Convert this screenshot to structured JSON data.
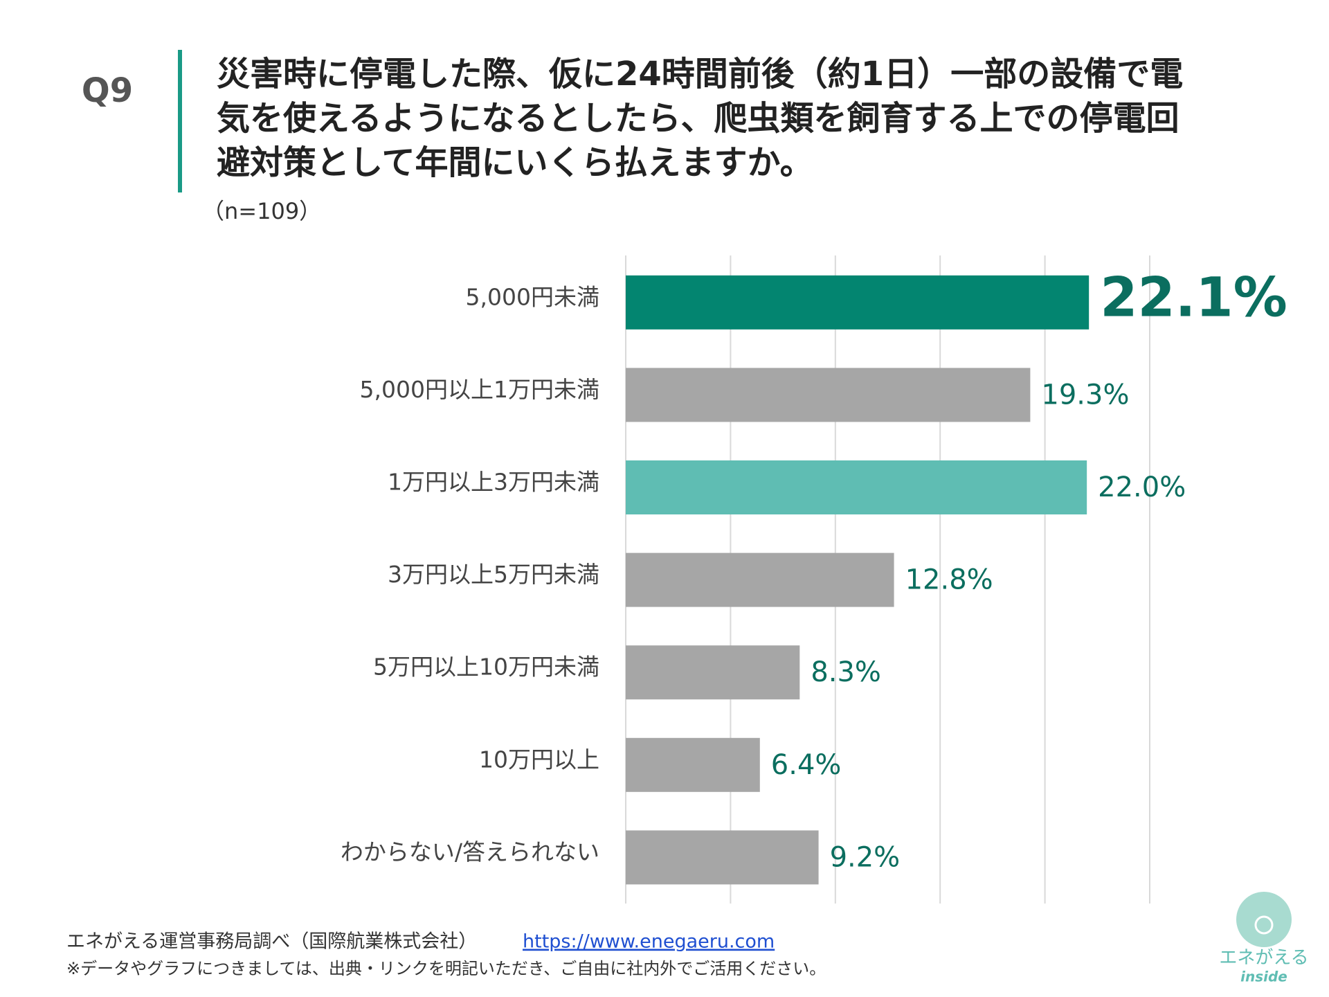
{
  "header": {
    "question": "Q9"
  },
  "chart_data": {
    "type": "bar",
    "orientation": "horizontal",
    "title": [
      "災害時に停電した際、仮に24時間前後（約1日）一部の設備で電",
      "気を使えるようになるとしたら、爬虫類を飼育する上での停電回",
      "避対策として年間にいくら払えますか。"
    ],
    "subtitle": "（n=109）",
    "categories": [
      "5,000円未満",
      "5,000円以上1万円未満",
      "1万円以上3万円未満",
      "3万円以上5万円未満",
      "5万円以上10万円未満",
      "10万円以上",
      "わからない/答えられない"
    ],
    "values": [
      22.1,
      19.3,
      22.0,
      12.8,
      8.3,
      6.4,
      9.2
    ],
    "value_labels": [
      "22.1%",
      "19.3%",
      "22.0%",
      "12.8%",
      "8.3%",
      "6.4%",
      "9.2%"
    ],
    "colors": [
      "#038570",
      "#a6a6a6",
      "#5fbdb3",
      "#a6a6a6",
      "#a6a6a6",
      "#a6a6a6",
      "#a6a6a6"
    ],
    "label_color": "#0b6e5f",
    "xlim": [
      0,
      25
    ],
    "xticks": [
      0,
      5,
      10,
      15,
      20,
      25
    ],
    "grid": true
  },
  "footer": {
    "source": "エネがえる運営事務局調べ（国際航業株式会社）",
    "link": "https://www.enegaeru.com",
    "note": "※データやグラフにつきましては、出典・リンクを明記いただき、ご自由に社内外でご活用ください。"
  },
  "logo": {
    "name": "エネがえる",
    "tag": "inside"
  }
}
